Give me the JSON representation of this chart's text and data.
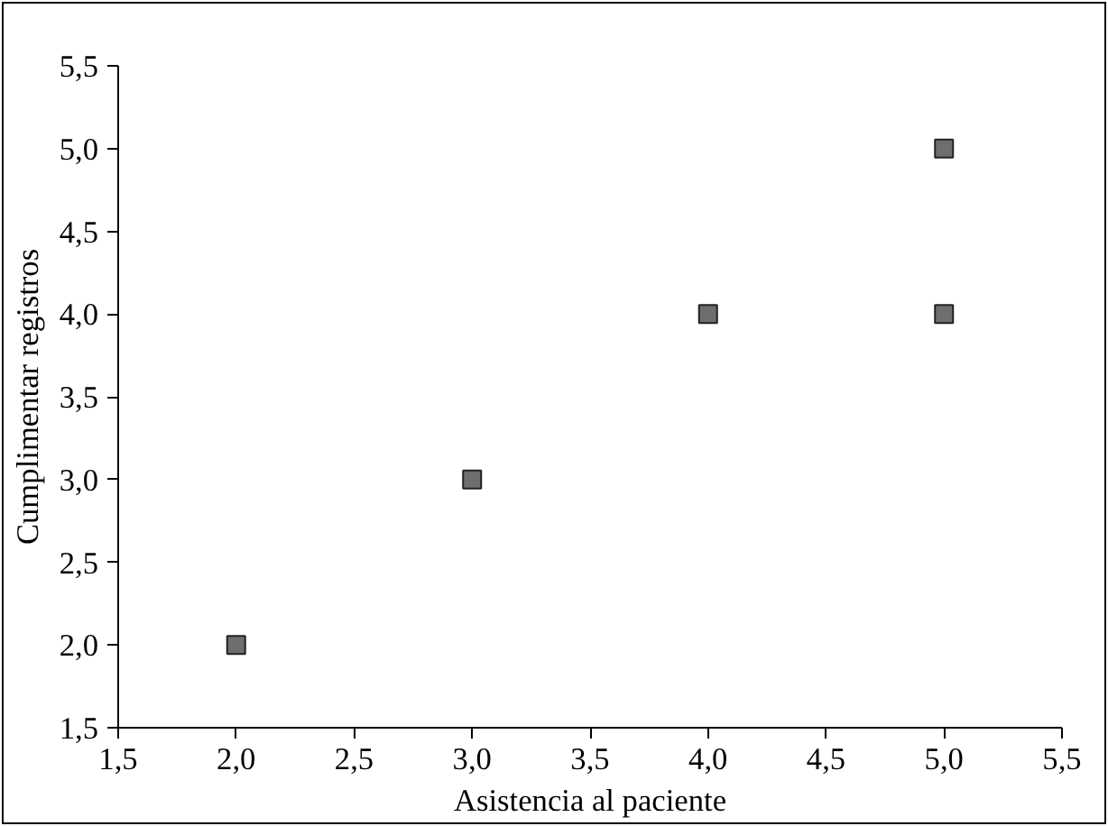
{
  "chart_data": {
    "type": "scatter",
    "xlabel": "Asistencia al paciente",
    "ylabel": "Cumplimentar registros",
    "x": [
      2,
      3,
      4,
      5,
      5
    ],
    "series": [
      {
        "color": "#6e6e6e",
        "values": [
          2,
          3,
          4,
          5,
          4
        ]
      }
    ],
    "xlim": [
      1.5,
      5.5
    ],
    "ylim": [
      1.5,
      5.5
    ],
    "xticks": [
      {
        "value": 1.5,
        "label": "1,5"
      },
      {
        "value": 2,
        "label": "2,0"
      },
      {
        "value": 2.5,
        "label": "2,5"
      },
      {
        "value": 3,
        "label": "3,0"
      },
      {
        "value": 3.5,
        "label": "3,5"
      },
      {
        "value": 4,
        "label": "4,0"
      },
      {
        "value": 4.5,
        "label": "4,5"
      },
      {
        "value": 5,
        "label": "5,0"
      },
      {
        "value": 5.5,
        "label": "5,5"
      }
    ],
    "yticks": [
      {
        "value": 1.5,
        "label": "1,5"
      },
      {
        "value": 2,
        "label": "2,0"
      },
      {
        "value": 2.5,
        "label": "2,5"
      },
      {
        "value": 3,
        "label": "3,0"
      },
      {
        "value": 3.5,
        "label": "3,5"
      },
      {
        "value": 4,
        "label": "4,0"
      },
      {
        "value": 4.5,
        "label": "4,5"
      },
      {
        "value": 5,
        "label": "5,0"
      },
      {
        "value": 5.5,
        "label": "5,5"
      }
    ],
    "grid": false,
    "marker": "square"
  }
}
